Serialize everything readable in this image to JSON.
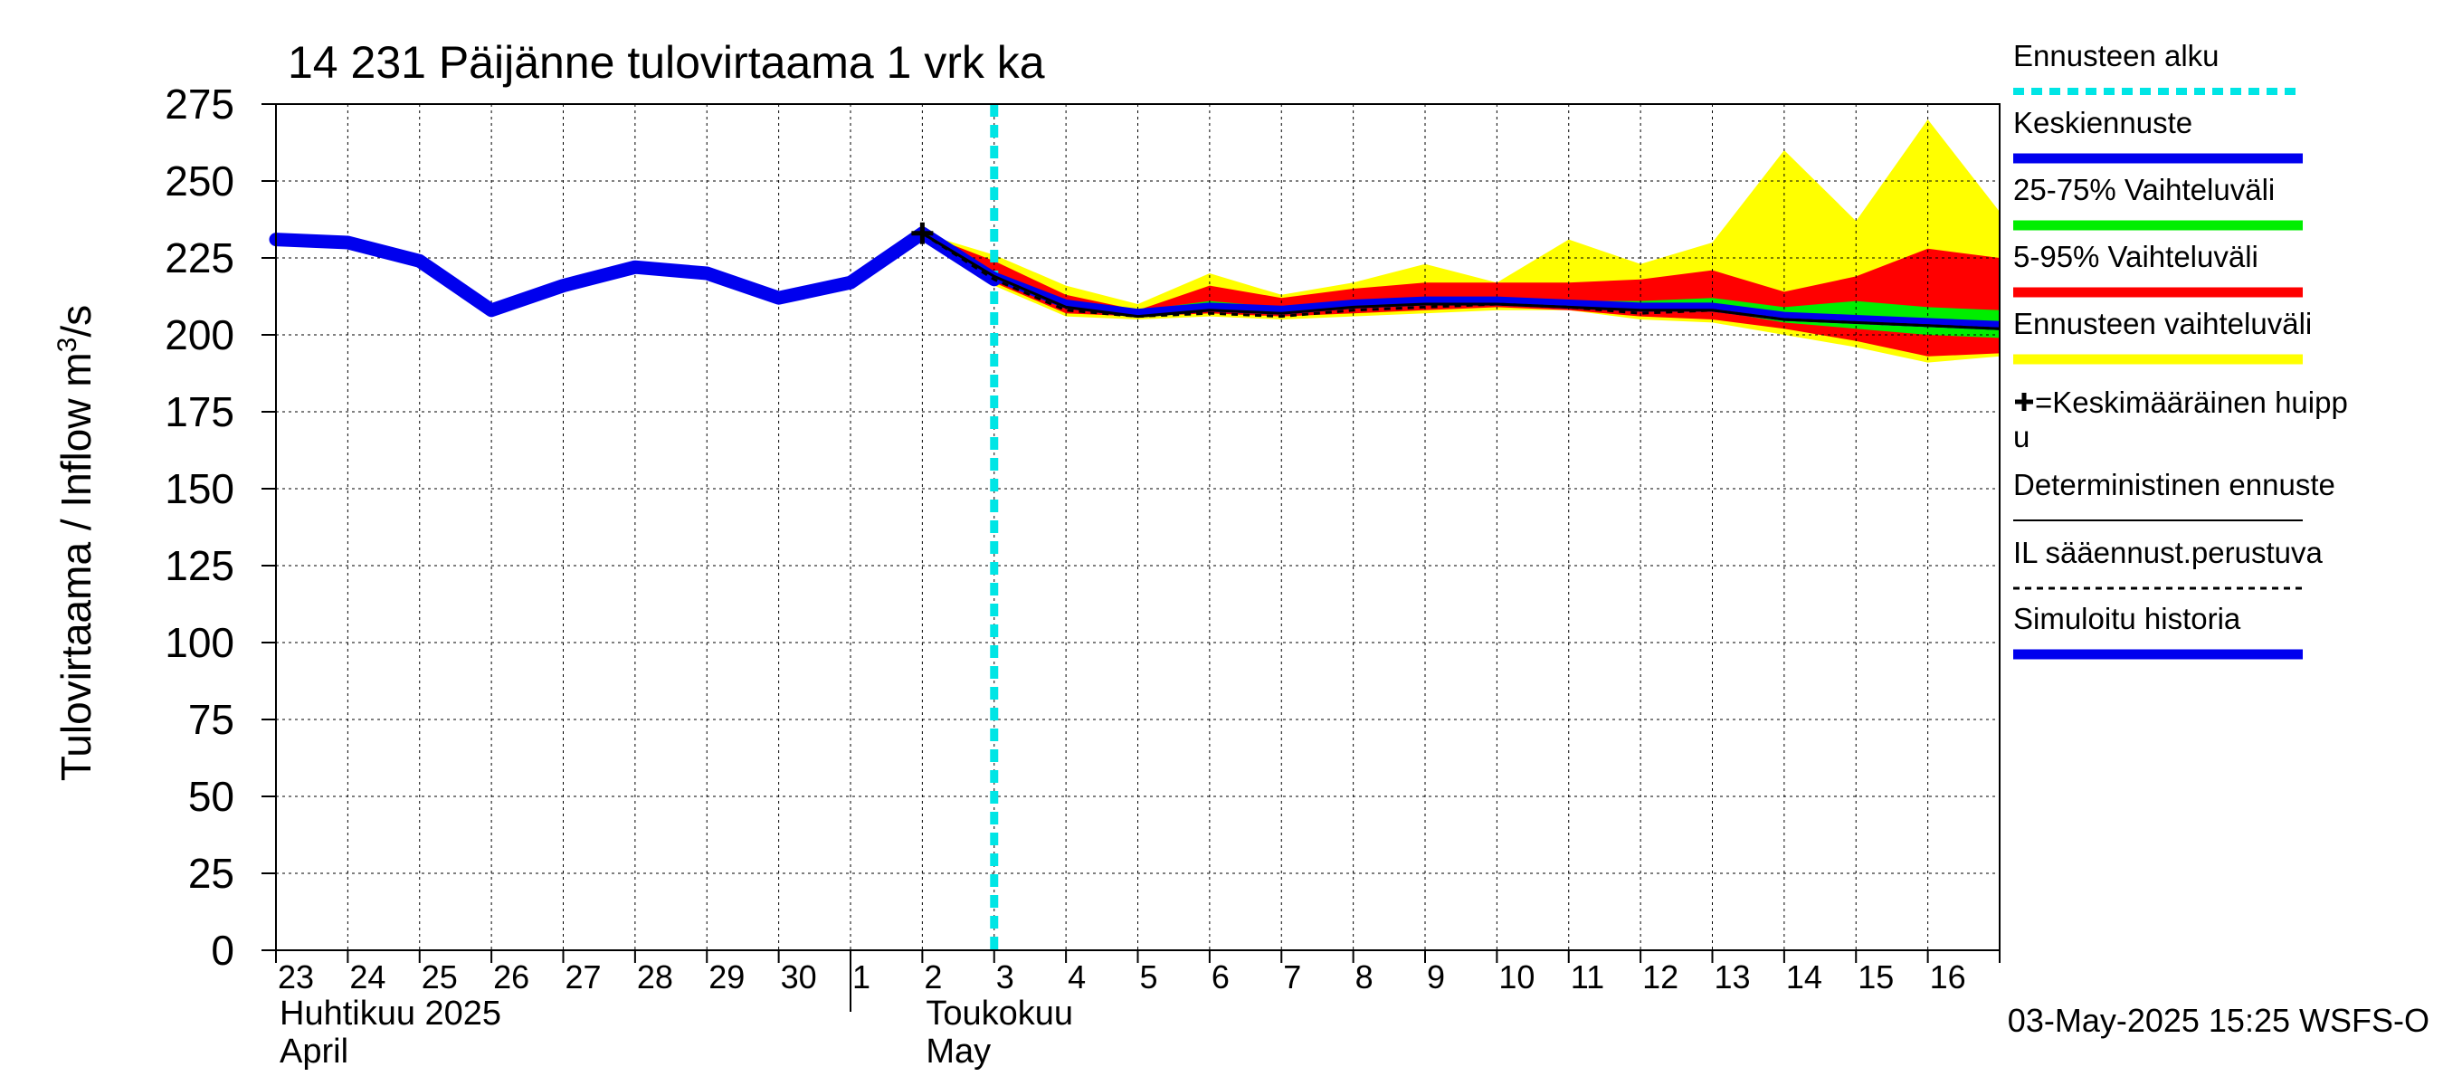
{
  "chart_data": {
    "type": "area",
    "title": "14 231 Päijänne tulovirtaama 1 vrk ka",
    "ylabel": "Tulovirtaama / Inflow    m³/s",
    "ylabel_main": "Tulovirtaama / Inflow",
    "ylabel_unit_base": "m",
    "ylabel_unit_sup": "3",
    "ylabel_unit_tail": "/s",
    "ylim": [
      0,
      275
    ],
    "yticks": [
      0,
      25,
      50,
      75,
      100,
      125,
      150,
      175,
      200,
      225,
      250,
      275
    ],
    "xlim": [
      0,
      24
    ],
    "x_tick_labels": [
      "23",
      "24",
      "25",
      "26",
      "27",
      "28",
      "29",
      "30",
      "1",
      "2",
      "3",
      "4",
      "5",
      "6",
      "7",
      "8",
      "9",
      "10",
      "11",
      "12",
      "13",
      "14",
      "15",
      "16"
    ],
    "month_labels": [
      {
        "x": 0,
        "line1": "Huhtikuu  2025",
        "line2": "April"
      },
      {
        "x": 9,
        "line1": "Toukokuu",
        "line2": "May"
      }
    ],
    "month_divider_x": 8,
    "forecast_start_x": 10,
    "grid": true,
    "legend_position": "right",
    "colors": {
      "history": "#0000ee",
      "mean_forecast": "#0000ee",
      "band_25_75": "#00ee00",
      "band_5_95": "#ff0000",
      "band_full": "#ffff00",
      "forecast_start": "#00e5e5",
      "deterministic": "#000000",
      "il_forecast": "#000000"
    },
    "series": [
      {
        "name": "Simuloitu historia",
        "x": [
          0,
          1,
          2,
          3,
          4,
          5,
          6,
          7,
          8,
          9,
          10
        ],
        "values": [
          231,
          230,
          224,
          208,
          216,
          222,
          220,
          212,
          217,
          233,
          218
        ]
      },
      {
        "name": "Keskiennuste",
        "x": [
          9,
          10,
          11,
          12,
          13,
          14,
          15,
          16,
          17,
          18,
          19,
          20,
          21,
          22,
          23,
          24
        ],
        "values": [
          233,
          219,
          210,
          207,
          209,
          208,
          210,
          211,
          211,
          210,
          209,
          209,
          206,
          205,
          204,
          203
        ]
      },
      {
        "name": "Deterministinen ennuste",
        "x": [
          9,
          10,
          11,
          12,
          13,
          14,
          15,
          16,
          17,
          18,
          19,
          20,
          21,
          22,
          23,
          24
        ],
        "values": [
          233,
          219,
          209,
          206,
          208,
          207,
          209,
          210,
          210,
          209,
          208,
          208,
          205,
          204,
          203,
          202
        ]
      },
      {
        "name": "IL sääennust.perustuva",
        "x": [
          9,
          10,
          11,
          12,
          13,
          14,
          15,
          16,
          17,
          18,
          19,
          20,
          21,
          22,
          23,
          24
        ],
        "values": [
          233,
          218,
          208,
          206,
          207,
          206,
          208,
          209,
          210,
          209,
          207,
          208,
          205,
          204,
          203,
          202
        ]
      }
    ],
    "bands": [
      {
        "name": "Ennusteen vaihteluväli",
        "x": [
          9,
          10,
          11,
          12,
          13,
          14,
          15,
          16,
          17,
          18,
          19,
          20,
          21,
          22,
          23,
          24
        ],
        "low": [
          233,
          216,
          206,
          205,
          206,
          205,
          206,
          207,
          208,
          208,
          205,
          204,
          200,
          196,
          191,
          193
        ],
        "high": [
          233,
          226,
          216,
          210,
          220,
          213,
          217,
          223,
          217,
          231,
          223,
          230,
          260,
          237,
          270,
          240
        ]
      },
      {
        "name": "5-95% Vaihteluväli",
        "x": [
          9,
          10,
          11,
          12,
          13,
          14,
          15,
          16,
          17,
          18,
          19,
          20,
          21,
          22,
          23,
          24
        ],
        "low": [
          233,
          217,
          207,
          206,
          207,
          206,
          207,
          208,
          209,
          208,
          206,
          205,
          202,
          198,
          193,
          194
        ],
        "high": [
          233,
          224,
          213,
          208,
          216,
          212,
          215,
          217,
          217,
          217,
          218,
          221,
          214,
          219,
          228,
          225
        ]
      },
      {
        "name": "25-75% Vaihteluväli",
        "x": [
          9,
          10,
          11,
          12,
          13,
          14,
          15,
          16,
          17,
          18,
          19,
          20,
          21,
          22,
          23,
          24
        ],
        "low": [
          233,
          218,
          209,
          206,
          208,
          207,
          209,
          210,
          210,
          209,
          208,
          208,
          204,
          202,
          200,
          199
        ],
        "high": [
          233,
          220,
          211,
          208,
          211,
          209,
          211,
          212,
          212,
          211,
          211,
          212,
          209,
          211,
          209,
          208
        ]
      }
    ],
    "peak_marker": {
      "x": 9,
      "y": 233
    },
    "legend": [
      {
        "label": "Ennusteen alku",
        "style": "dotted-cyan"
      },
      {
        "label": "Keskiennuste",
        "style": "blue"
      },
      {
        "label": "25-75% Vaihteluväli",
        "style": "green"
      },
      {
        "label": "5-95% Vaihteluväli",
        "style": "red"
      },
      {
        "label": "Ennusteen vaihteluväli",
        "style": "yellow"
      },
      {
        "label": "=Keskimääräinen huipp",
        "label2": "u",
        "style": "plus"
      },
      {
        "label": "Deterministinen ennuste",
        "style": "thin-black"
      },
      {
        "label": "IL sääennust.perustuva",
        "style": "dashed-black"
      },
      {
        "label": "Simuloitu historia",
        "style": "blue"
      }
    ],
    "timestamp": "03-May-2025 15:25 WSFS-O"
  }
}
